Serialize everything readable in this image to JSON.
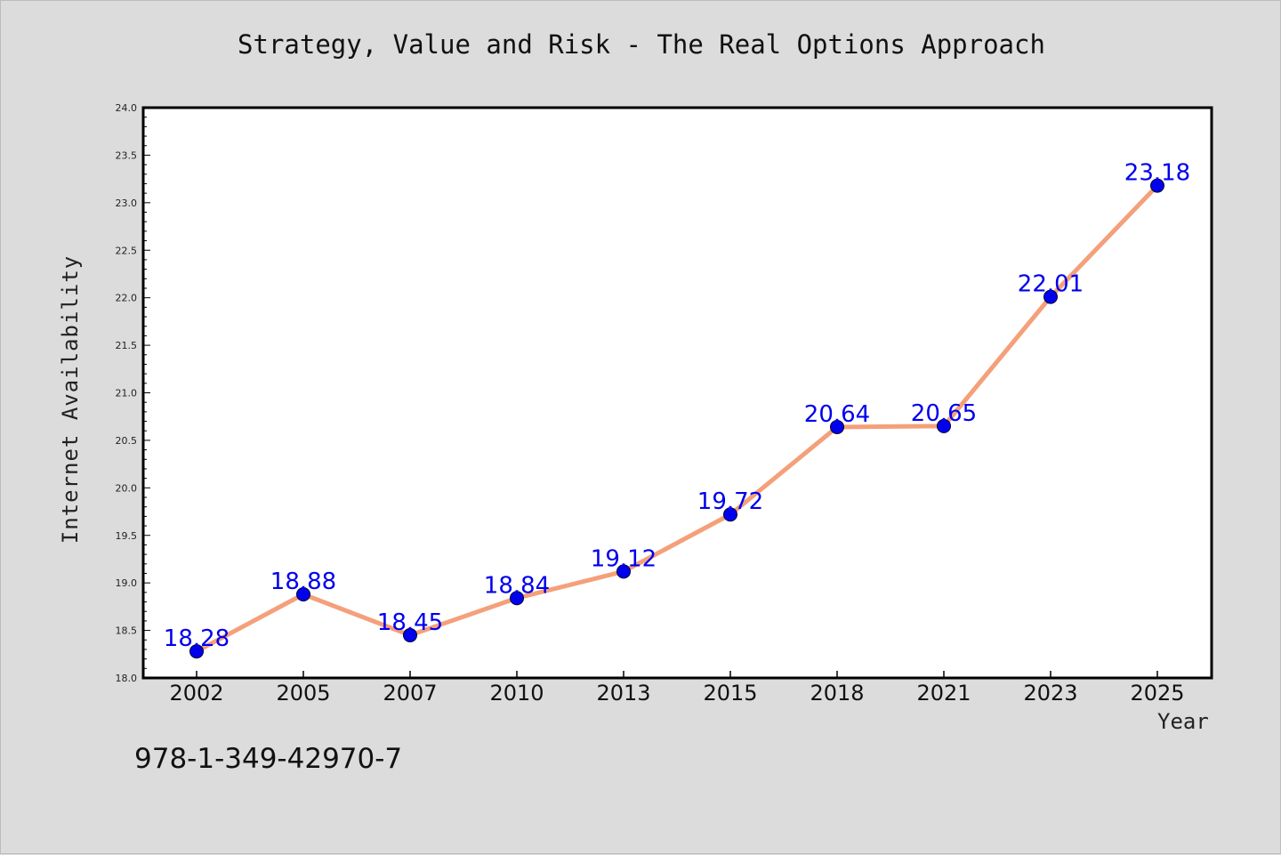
{
  "chart_data": {
    "type": "line",
    "title": "Strategy, Value and Risk - The Real Options Approach",
    "xlabel": "Year",
    "ylabel": "Internet Availability",
    "categories": [
      "2002",
      "2005",
      "2007",
      "2010",
      "2013",
      "2015",
      "2018",
      "2021",
      "2023",
      "2025"
    ],
    "values": [
      18.28,
      18.88,
      18.45,
      18.84,
      19.12,
      19.72,
      20.64,
      20.65,
      22.01,
      23.18
    ],
    "data_labels": [
      "18.28",
      "18.88",
      "18.45",
      "18.84",
      "19.12",
      "19.72",
      "20.64",
      "20.65",
      "22.01",
      "23.18"
    ],
    "ylim": [
      18.0,
      24.0
    ],
    "yticks": [
      "18.0",
      "18.5",
      "19.0",
      "19.5",
      "20.0",
      "20.5",
      "21.0",
      "21.5",
      "22.0",
      "22.5",
      "23.0",
      "23.5",
      "24.0"
    ],
    "grid": false,
    "colors": {
      "line": "#f4a07a",
      "marker": "#0000ee",
      "label": "#0000ee",
      "plot_bg": "#ffffff",
      "page_bg": "#dcdcdc"
    }
  },
  "footer": {
    "isbn": "978-1-349-42970-7"
  }
}
